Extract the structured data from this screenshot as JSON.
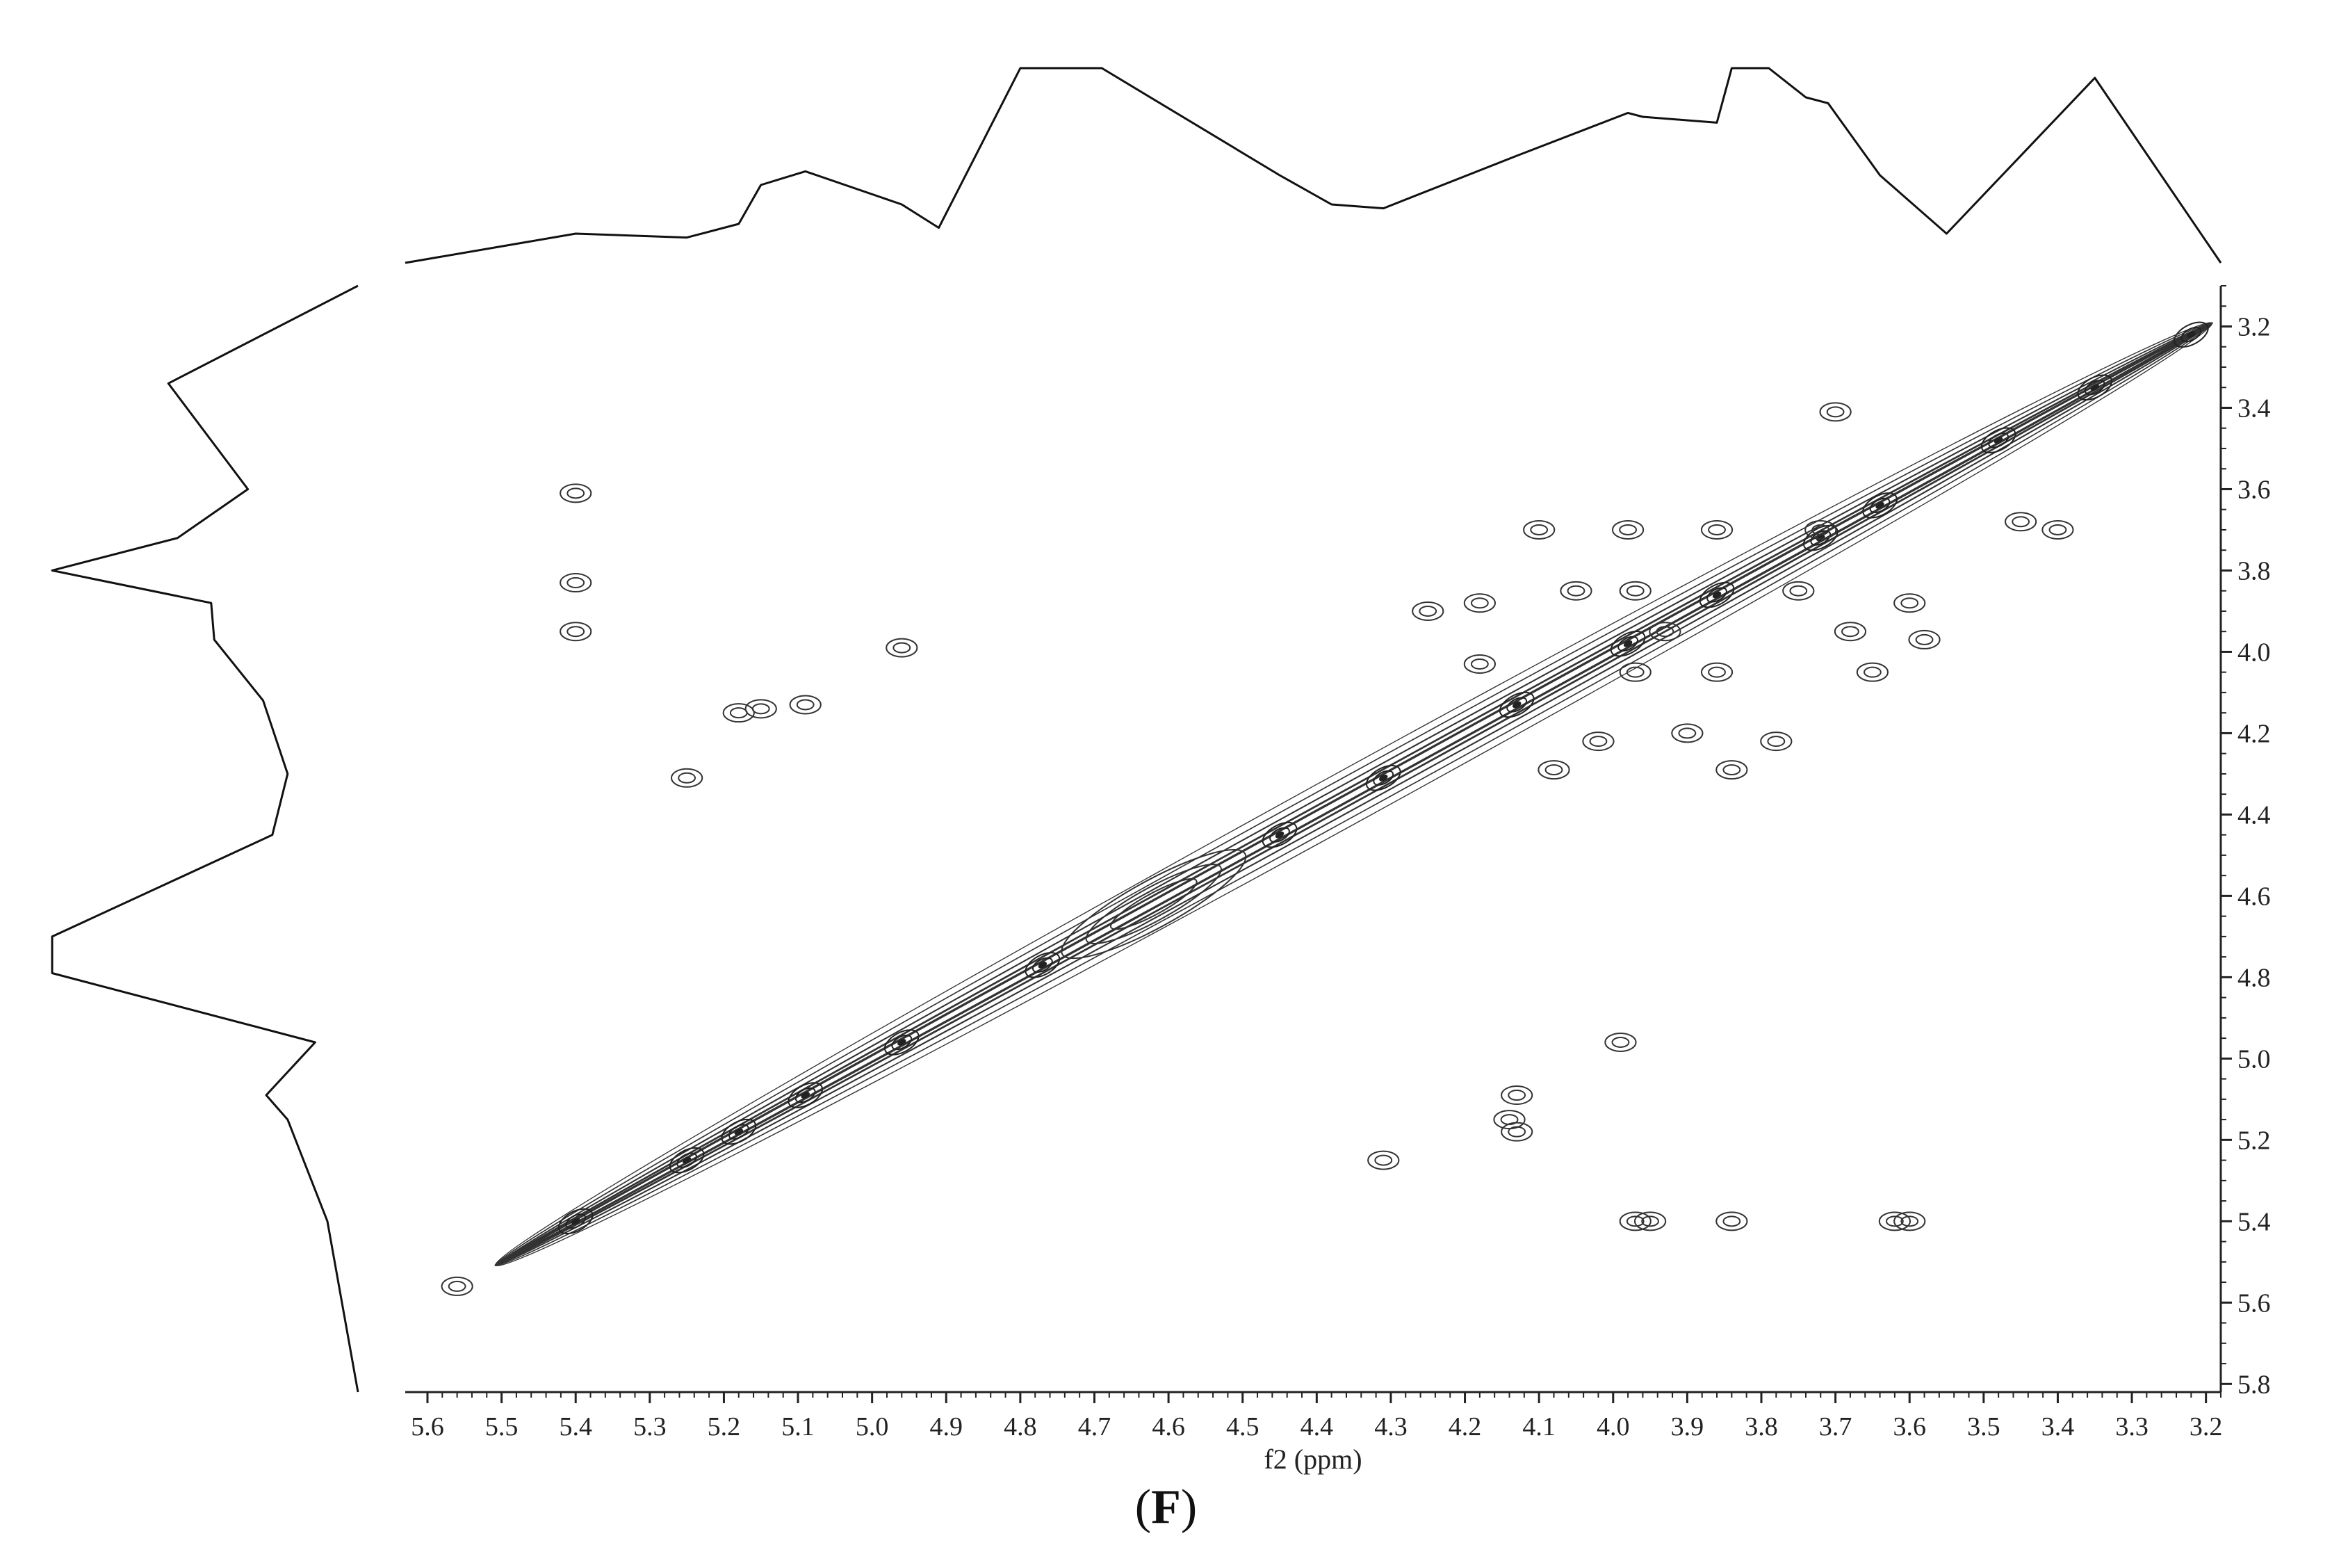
{
  "chart_data": {
    "type": "contour",
    "xlabel": "f2 (ppm)",
    "ylabel": "",
    "x_axis": {
      "lim": [
        5.63,
        3.18
      ],
      "reversed": true,
      "ticks": [
        "5.6",
        "5.5",
        "5.4",
        "5.3",
        "5.2",
        "5.1",
        "5.0",
        "4.9",
        "4.8",
        "4.7",
        "4.6",
        "4.5",
        "4.4",
        "4.3",
        "4.2",
        "4.1",
        "4.0",
        "3.9",
        "3.8",
        "3.7",
        "3.6",
        "3.5",
        "3.4",
        "3.3",
        "3.2"
      ]
    },
    "y_axis": {
      "lim": [
        3.1,
        5.82
      ],
      "position": "right",
      "ticks": [
        "3.2",
        "3.4",
        "3.6",
        "3.8",
        "4.0",
        "4.2",
        "4.4",
        "4.6",
        "4.8",
        "5.0",
        "5.2",
        "5.4",
        "5.6",
        "5.8"
      ]
    },
    "diagonal": [
      {
        "x": 5.5,
        "y": 5.5
      },
      {
        "x": 4.8,
        "y": 4.8
      },
      {
        "x": 3.2,
        "y": 3.2
      }
    ],
    "cross_peaks": [
      {
        "x": 5.4,
        "y": 3.61
      },
      {
        "x": 5.4,
        "y": 3.95
      },
      {
        "x": 5.4,
        "y": 3.83
      },
      {
        "x": 5.18,
        "y": 4.15
      },
      {
        "x": 5.15,
        "y": 4.14
      },
      {
        "x": 5.09,
        "y": 4.13
      },
      {
        "x": 4.96,
        "y": 3.99
      },
      {
        "x": 5.25,
        "y": 4.31
      },
      {
        "x": 5.56,
        "y": 5.56
      },
      {
        "x": 4.13,
        "y": 5.09
      },
      {
        "x": 4.14,
        "y": 5.15
      },
      {
        "x": 4.13,
        "y": 5.18
      },
      {
        "x": 3.97,
        "y": 5.4
      },
      {
        "x": 3.95,
        "y": 5.4
      },
      {
        "x": 3.84,
        "y": 5.4
      },
      {
        "x": 3.62,
        "y": 5.4
      },
      {
        "x": 3.6,
        "y": 5.4
      },
      {
        "x": 3.99,
        "y": 4.96
      },
      {
        "x": 4.31,
        "y": 5.25
      },
      {
        "x": 3.7,
        "y": 3.41
      },
      {
        "x": 3.4,
        "y": 3.7
      },
      {
        "x": 3.45,
        "y": 3.68
      },
      {
        "x": 4.25,
        "y": 3.9
      },
      {
        "x": 4.18,
        "y": 4.03
      },
      {
        "x": 4.1,
        "y": 3.7
      },
      {
        "x": 4.05,
        "y": 3.85
      },
      {
        "x": 4.02,
        "y": 4.22
      },
      {
        "x": 3.98,
        "y": 3.7
      },
      {
        "x": 3.97,
        "y": 4.05
      },
      {
        "x": 3.93,
        "y": 3.95
      },
      {
        "x": 3.9,
        "y": 4.2
      },
      {
        "x": 3.86,
        "y": 3.7
      },
      {
        "x": 3.86,
        "y": 4.05
      },
      {
        "x": 3.75,
        "y": 3.85
      },
      {
        "x": 3.72,
        "y": 3.7
      },
      {
        "x": 3.68,
        "y": 3.95
      },
      {
        "x": 3.65,
        "y": 4.05
      },
      {
        "x": 3.6,
        "y": 3.88
      },
      {
        "x": 4.08,
        "y": 4.29
      },
      {
        "x": 3.84,
        "y": 4.29
      },
      {
        "x": 3.78,
        "y": 4.22
      },
      {
        "x": 4.18,
        "y": 3.88
      },
      {
        "x": 3.58,
        "y": 3.97
      },
      {
        "x": 3.97,
        "y": 3.85
      }
    ],
    "projection_f2": [
      {
        "ppm": 5.63,
        "h": 0.0
      },
      {
        "ppm": 5.4,
        "h": 0.15
      },
      {
        "ppm": 5.25,
        "h": 0.13
      },
      {
        "ppm": 5.18,
        "h": 0.2
      },
      {
        "ppm": 5.15,
        "h": 0.4
      },
      {
        "ppm": 5.09,
        "h": 0.47
      },
      {
        "ppm": 4.96,
        "h": 0.3
      },
      {
        "ppm": 4.91,
        "h": 0.18
      },
      {
        "ppm": 4.8,
        "h": 1.0
      },
      {
        "ppm": 4.69,
        "h": 1.0
      },
      {
        "ppm": 4.45,
        "h": 0.45
      },
      {
        "ppm": 4.38,
        "h": 0.3
      },
      {
        "ppm": 4.31,
        "h": 0.28
      },
      {
        "ppm": 4.13,
        "h": 0.55
      },
      {
        "ppm": 3.98,
        "h": 0.77
      },
      {
        "ppm": 3.96,
        "h": 0.75
      },
      {
        "ppm": 3.86,
        "h": 0.72
      },
      {
        "ppm": 3.84,
        "h": 1.0
      },
      {
        "ppm": 3.79,
        "h": 1.0
      },
      {
        "ppm": 3.74,
        "h": 0.85
      },
      {
        "ppm": 3.71,
        "h": 0.82
      },
      {
        "ppm": 3.64,
        "h": 0.45
      },
      {
        "ppm": 3.55,
        "h": 0.15
      },
      {
        "ppm": 3.35,
        "h": 0.95
      },
      {
        "ppm": 3.18,
        "h": 0.0
      }
    ],
    "projection_f1": [
      {
        "ppm": 3.1,
        "h": 0.0
      },
      {
        "ppm": 3.34,
        "h": 0.62
      },
      {
        "ppm": 3.6,
        "h": 0.36
      },
      {
        "ppm": 3.72,
        "h": 0.59
      },
      {
        "ppm": 3.8,
        "h": 1.0
      },
      {
        "ppm": 3.88,
        "h": 0.48
      },
      {
        "ppm": 3.97,
        "h": 0.47
      },
      {
        "ppm": 4.12,
        "h": 0.31
      },
      {
        "ppm": 4.3,
        "h": 0.23
      },
      {
        "ppm": 4.45,
        "h": 0.28
      },
      {
        "ppm": 4.7,
        "h": 1.0
      },
      {
        "ppm": 4.79,
        "h": 1.0
      },
      {
        "ppm": 4.96,
        "h": 0.14
      },
      {
        "ppm": 5.09,
        "h": 0.3
      },
      {
        "ppm": 5.15,
        "h": 0.23
      },
      {
        "ppm": 5.4,
        "h": 0.1
      },
      {
        "ppm": 5.82,
        "h": 0.0
      }
    ]
  },
  "figure": {
    "panel_label_open": "(",
    "panel_label_letter": "F",
    "panel_label_close": ")"
  }
}
